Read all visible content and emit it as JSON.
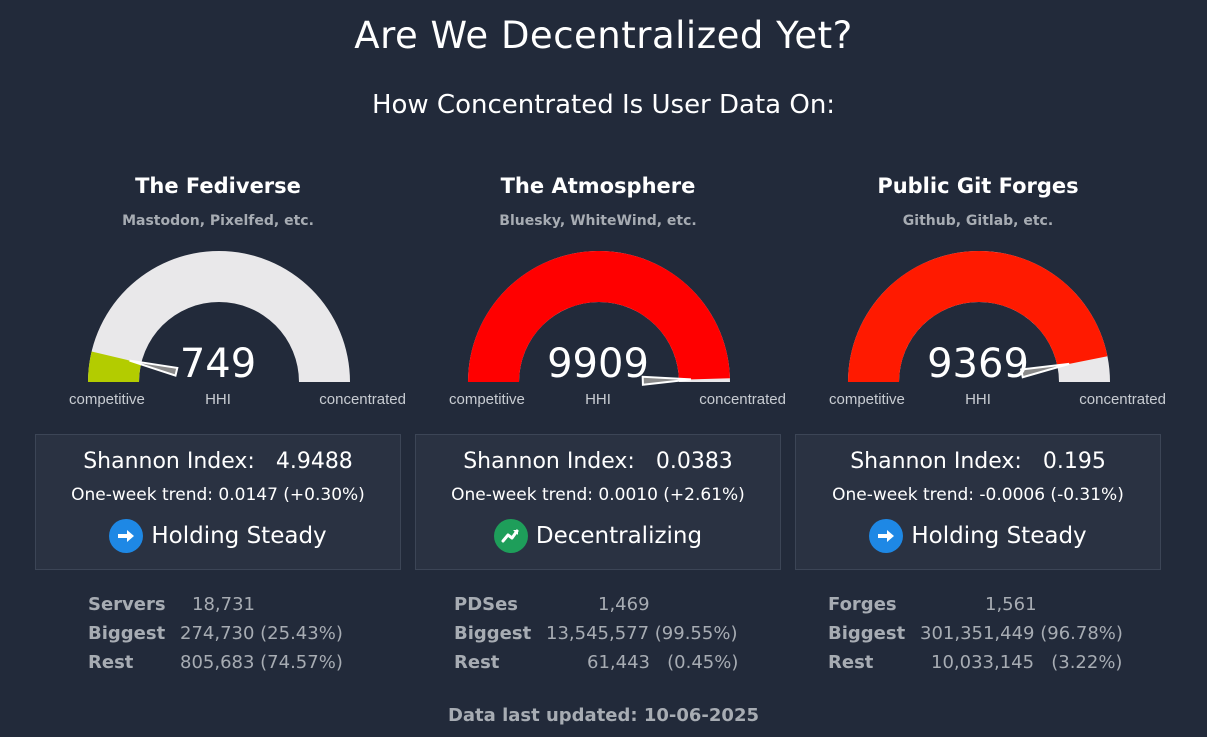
{
  "page": {
    "title": "Are We Decentralized Yet?",
    "subtitle": "How Concentrated Is User Data On:",
    "footer": "Data last updated: 10-06-2025"
  },
  "gauge_labels": {
    "left": "competitive",
    "mid": "HHI",
    "right": "concentrated"
  },
  "shannon_label": "Shannon Index:",
  "columns": [
    {
      "name": "The Fediverse",
      "examples": "Mastodon, Pixelfed, etc.",
      "hhi": "749",
      "hhi_fraction": 0.0749,
      "fill_color": "#b3cc00",
      "shannon": "4.9488",
      "trend": "One-week trend: 0.0147 (+0.30%)",
      "status": "Holding Steady",
      "status_icon": "arrow-right-icon",
      "status_color": "#1e88e5",
      "stats": [
        {
          "label": "Servers",
          "value": "18,731"
        },
        {
          "label": "Biggest",
          "value": "274,730 (25.43%)"
        },
        {
          "label": "Rest",
          "value": "805,683 (74.57%)"
        }
      ]
    },
    {
      "name": "The Atmosphere",
      "examples": "Bluesky, WhiteWind, etc.",
      "hhi": "9909",
      "hhi_fraction": 0.9909,
      "fill_color": "#ff0000",
      "shannon": "0.0383",
      "trend": "One-week trend: 0.0010 (+2.61%)",
      "status": "Decentralizing",
      "status_icon": "trend-up-icon",
      "status_color": "#1e9e5a",
      "stats": [
        {
          "label": "PDSes",
          "value": "1,469"
        },
        {
          "label": "Biggest",
          "value": "13,545,577 (99.55%)"
        },
        {
          "label": "Rest",
          "value": "61,443   (0.45%)"
        }
      ]
    },
    {
      "name": "Public Git Forges",
      "examples": "Github, Gitlab, etc.",
      "hhi": "9369",
      "hhi_fraction": 0.9369,
      "fill_color": "#ff1a00",
      "shannon": "0.195",
      "trend": "One-week trend: -0.0006 (-0.31%)",
      "status": "Holding Steady",
      "status_icon": "arrow-right-icon",
      "status_color": "#1e88e5",
      "stats": [
        {
          "label": "Forges",
          "value": "1,561"
        },
        {
          "label": "Biggest",
          "value": "301,351,449 (96.78%)"
        },
        {
          "label": "Rest",
          "value": "10,033,145   (3.22%)"
        }
      ]
    }
  ]
}
